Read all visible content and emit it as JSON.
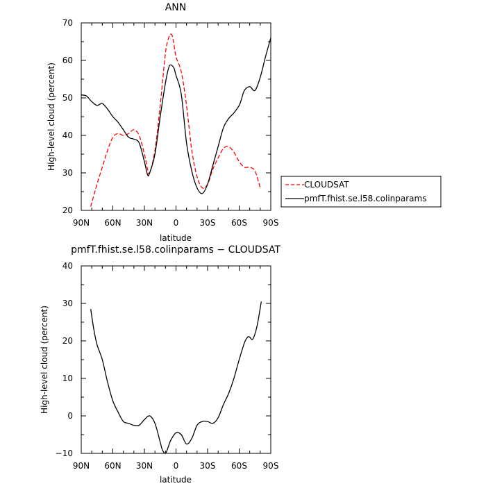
{
  "chart_data": [
    {
      "type": "line",
      "title": "ANN",
      "xlabel": "latitude",
      "ylabel": "High-level cloud (percent)",
      "xlim": [
        90,
        -90
      ],
      "ylim": [
        20,
        70
      ],
      "x_ticks": [
        90,
        60,
        30,
        0,
        -30,
        -60,
        -90
      ],
      "x_tick_labels": [
        "90N",
        "60N",
        "30N",
        "0",
        "30S",
        "60S",
        "90S"
      ],
      "y_ticks": [
        20,
        30,
        40,
        50,
        60,
        70
      ],
      "y_tick_labels": [
        "20",
        "30",
        "40",
        "50",
        "60",
        "70"
      ],
      "grid": false,
      "legend_position": "right",
      "series": [
        {
          "name": "CLOUDSAT",
          "color": "#ff0000",
          "dash": "dashed",
          "x": [
            81,
            75,
            70,
            65,
            60,
            55,
            50,
            45,
            40,
            35,
            30,
            27,
            25,
            20,
            15,
            10,
            7,
            5,
            3,
            0,
            -5,
            -10,
            -15,
            -20,
            -25,
            -30,
            -35,
            -40,
            -45,
            -50,
            -55,
            -60,
            -65,
            -70,
            -75,
            -80
          ],
          "y": [
            21,
            27,
            31.5,
            36,
            39.5,
            40.5,
            40,
            40.5,
            41.5,
            40,
            35,
            31,
            30,
            36,
            48,
            62,
            66,
            67,
            66,
            61,
            57,
            48,
            36,
            29,
            26,
            27,
            31,
            34,
            36.5,
            37,
            35.5,
            33,
            31.5,
            31.5,
            30.5,
            26
          ]
        },
        {
          "name": "pmfT.fhist.se.l58.colinparams",
          "color": "#000000",
          "dash": "solid",
          "x": [
            90,
            85,
            80,
            75,
            70,
            65,
            60,
            55,
            50,
            45,
            40,
            35,
            30,
            27,
            25,
            20,
            15,
            10,
            7,
            5,
            2,
            0,
            -5,
            -10,
            -15,
            -20,
            -25,
            -30,
            -35,
            -40,
            -45,
            -50,
            -55,
            -60,
            -62,
            -65,
            -70,
            -75,
            -80,
            -85,
            -90
          ],
          "y": [
            50.8,
            50.5,
            49,
            48,
            48.5,
            47,
            45,
            43.5,
            41.5,
            39.5,
            39,
            38,
            33,
            29.5,
            30,
            35,
            45,
            54,
            58,
            58.8,
            58,
            56,
            51,
            38,
            30.5,
            26,
            24.5,
            27,
            32,
            37,
            42,
            44.5,
            46,
            48,
            49.5,
            52,
            53,
            52,
            55.5,
            61,
            66
          ]
        }
      ]
    },
    {
      "type": "line",
      "title": "pmfT.fhist.se.l58.colinparams − CLOUDSAT",
      "xlabel": "latitude",
      "ylabel": "High-level cloud (percent)",
      "xlim": [
        90,
        -90
      ],
      "ylim": [
        -10,
        40
      ],
      "x_ticks": [
        90,
        60,
        30,
        0,
        -30,
        -60,
        -90
      ],
      "x_tick_labels": [
        "90N",
        "60N",
        "30N",
        "0",
        "30S",
        "60S",
        "90S"
      ],
      "y_ticks": [
        -10,
        0,
        10,
        20,
        30,
        40
      ],
      "y_tick_labels": [
        "−10",
        "0",
        "10",
        "20",
        "30",
        "40"
      ],
      "grid": false,
      "series": [
        {
          "color": "#000000",
          "dash": "solid",
          "x": [
            81,
            78,
            75,
            70,
            65,
            60,
            55,
            50,
            45,
            40,
            35,
            30,
            25,
            20,
            15,
            13,
            10,
            7,
            5,
            0,
            -5,
            -10,
            -15,
            -20,
            -25,
            -30,
            -35,
            -40,
            -45,
            -50,
            -55,
            -60,
            -65,
            -68,
            -70,
            -73,
            -77,
            -81
          ],
          "y": [
            28.5,
            23,
            19,
            15,
            9,
            4,
            1,
            -1.5,
            -2,
            -2.5,
            -2.5,
            -1,
            0,
            -2,
            -7,
            -9,
            -10,
            -8,
            -6.5,
            -4.5,
            -5,
            -7.5,
            -6,
            -2.5,
            -1.5,
            -1.5,
            -2,
            -0.5,
            3,
            6,
            10,
            15,
            19.5,
            21,
            21,
            20.5,
            24,
            30.5
          ]
        }
      ]
    }
  ],
  "legend": {
    "entries": [
      {
        "label": "CLOUDSAT",
        "color": "#ff0000",
        "dash": "dashed"
      },
      {
        "label": "pmfT.fhist.se.l58.colinparams",
        "color": "#000000",
        "dash": "solid"
      }
    ]
  }
}
